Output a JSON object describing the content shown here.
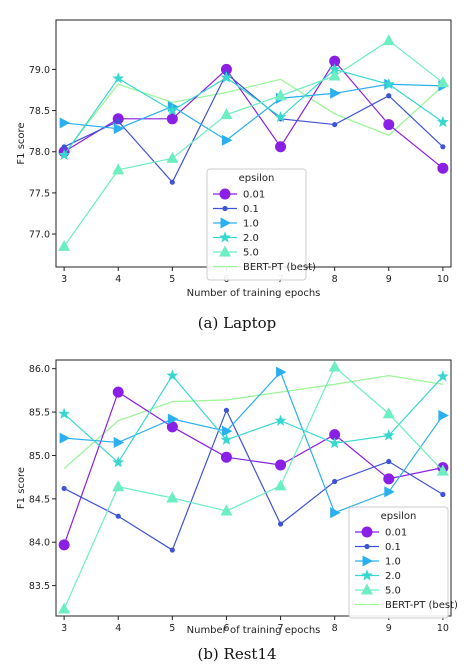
{
  "chart_data": [
    {
      "type": "line",
      "caption": "(a) Laptop",
      "xlabel": "Number of training epochs",
      "ylabel": "F1 score",
      "x": [
        3,
        4,
        5,
        6,
        7,
        8,
        9,
        10
      ],
      "xlim": [
        2.85,
        10.15
      ],
      "ylim": [
        76.6,
        79.6
      ],
      "yticks": [
        77.0,
        77.5,
        78.0,
        78.5,
        79.0
      ],
      "ytick_labels": [
        "77.0",
        "77.5",
        "78.0",
        "78.5",
        "79.0"
      ],
      "legend_title": "epsilon",
      "legend_position": "center",
      "grid": false,
      "series": [
        {
          "name": "0.01",
          "marker": "circle",
          "color": "#8a1fe6",
          "values": [
            78.0,
            78.4,
            78.4,
            79.0,
            78.06,
            79.1,
            78.33,
            77.8
          ]
        },
        {
          "name": "0.1",
          "marker": "dot",
          "color": "#3e53d6",
          "values": [
            78.06,
            78.37,
            77.63,
            78.95,
            78.4,
            78.33,
            78.68,
            78.06
          ]
        },
        {
          "name": "1.0",
          "marker": "triangle-right",
          "color": "#2ab0f0",
          "values": [
            78.35,
            78.28,
            78.55,
            78.14,
            78.65,
            78.71,
            78.82,
            78.8
          ]
        },
        {
          "name": "2.0",
          "marker": "star",
          "color": "#38d8d0",
          "values": [
            77.96,
            78.89,
            78.5,
            78.9,
            78.42,
            79.0,
            78.82,
            78.36
          ]
        },
        {
          "name": "5.0",
          "marker": "triangle-up",
          "color": "#6ceec0",
          "values": [
            76.85,
            77.78,
            77.92,
            78.45,
            78.68,
            78.92,
            79.35,
            78.84
          ]
        },
        {
          "name": "BERT-PT (best)",
          "marker": "none",
          "color": "#9ef59a",
          "values": [
            77.98,
            78.82,
            78.6,
            78.72,
            78.88,
            78.46,
            78.2,
            78.8
          ]
        }
      ]
    },
    {
      "type": "line",
      "caption": "(b) Rest14",
      "xlabel": "Number of training epochs",
      "ylabel": "F1 score",
      "x": [
        3,
        4,
        5,
        6,
        7,
        8,
        9,
        10
      ],
      "xlim": [
        2.85,
        10.15
      ],
      "ylim": [
        83.15,
        86.1
      ],
      "yticks": [
        83.5,
        84.0,
        84.5,
        85.0,
        85.5,
        86.0
      ],
      "ytick_labels": [
        "83.5",
        "84.0",
        "84.5",
        "85.0",
        "85.5",
        "86.0"
      ],
      "legend_title": "epsilon",
      "legend_position": "lower right",
      "grid": false,
      "series": [
        {
          "name": "0.01",
          "marker": "circle",
          "color": "#8a1fe6",
          "values": [
            83.97,
            85.73,
            85.33,
            84.98,
            84.89,
            85.24,
            84.73,
            84.86
          ]
        },
        {
          "name": "0.1",
          "marker": "dot",
          "color": "#3e53d6",
          "values": [
            84.62,
            84.3,
            83.91,
            85.52,
            84.21,
            84.7,
            84.93,
            84.55
          ]
        },
        {
          "name": "1.0",
          "marker": "triangle-right",
          "color": "#2ab0f0",
          "values": [
            85.2,
            85.15,
            85.42,
            85.28,
            85.96,
            84.34,
            84.58,
            85.46
          ]
        },
        {
          "name": "2.0",
          "marker": "star",
          "color": "#38d8d0",
          "values": [
            85.48,
            84.92,
            85.92,
            85.18,
            85.4,
            85.14,
            85.23,
            85.91
          ]
        },
        {
          "name": "5.0",
          "marker": "triangle-up",
          "color": "#6ceec0",
          "values": [
            83.23,
            84.64,
            84.51,
            84.36,
            84.65,
            86.02,
            85.48,
            84.82
          ]
        },
        {
          "name": "BERT-PT (best)",
          "marker": "none",
          "color": "#9ef59a",
          "values": [
            84.85,
            85.4,
            85.62,
            85.64,
            85.73,
            85.82,
            85.92,
            85.82
          ]
        }
      ]
    }
  ]
}
